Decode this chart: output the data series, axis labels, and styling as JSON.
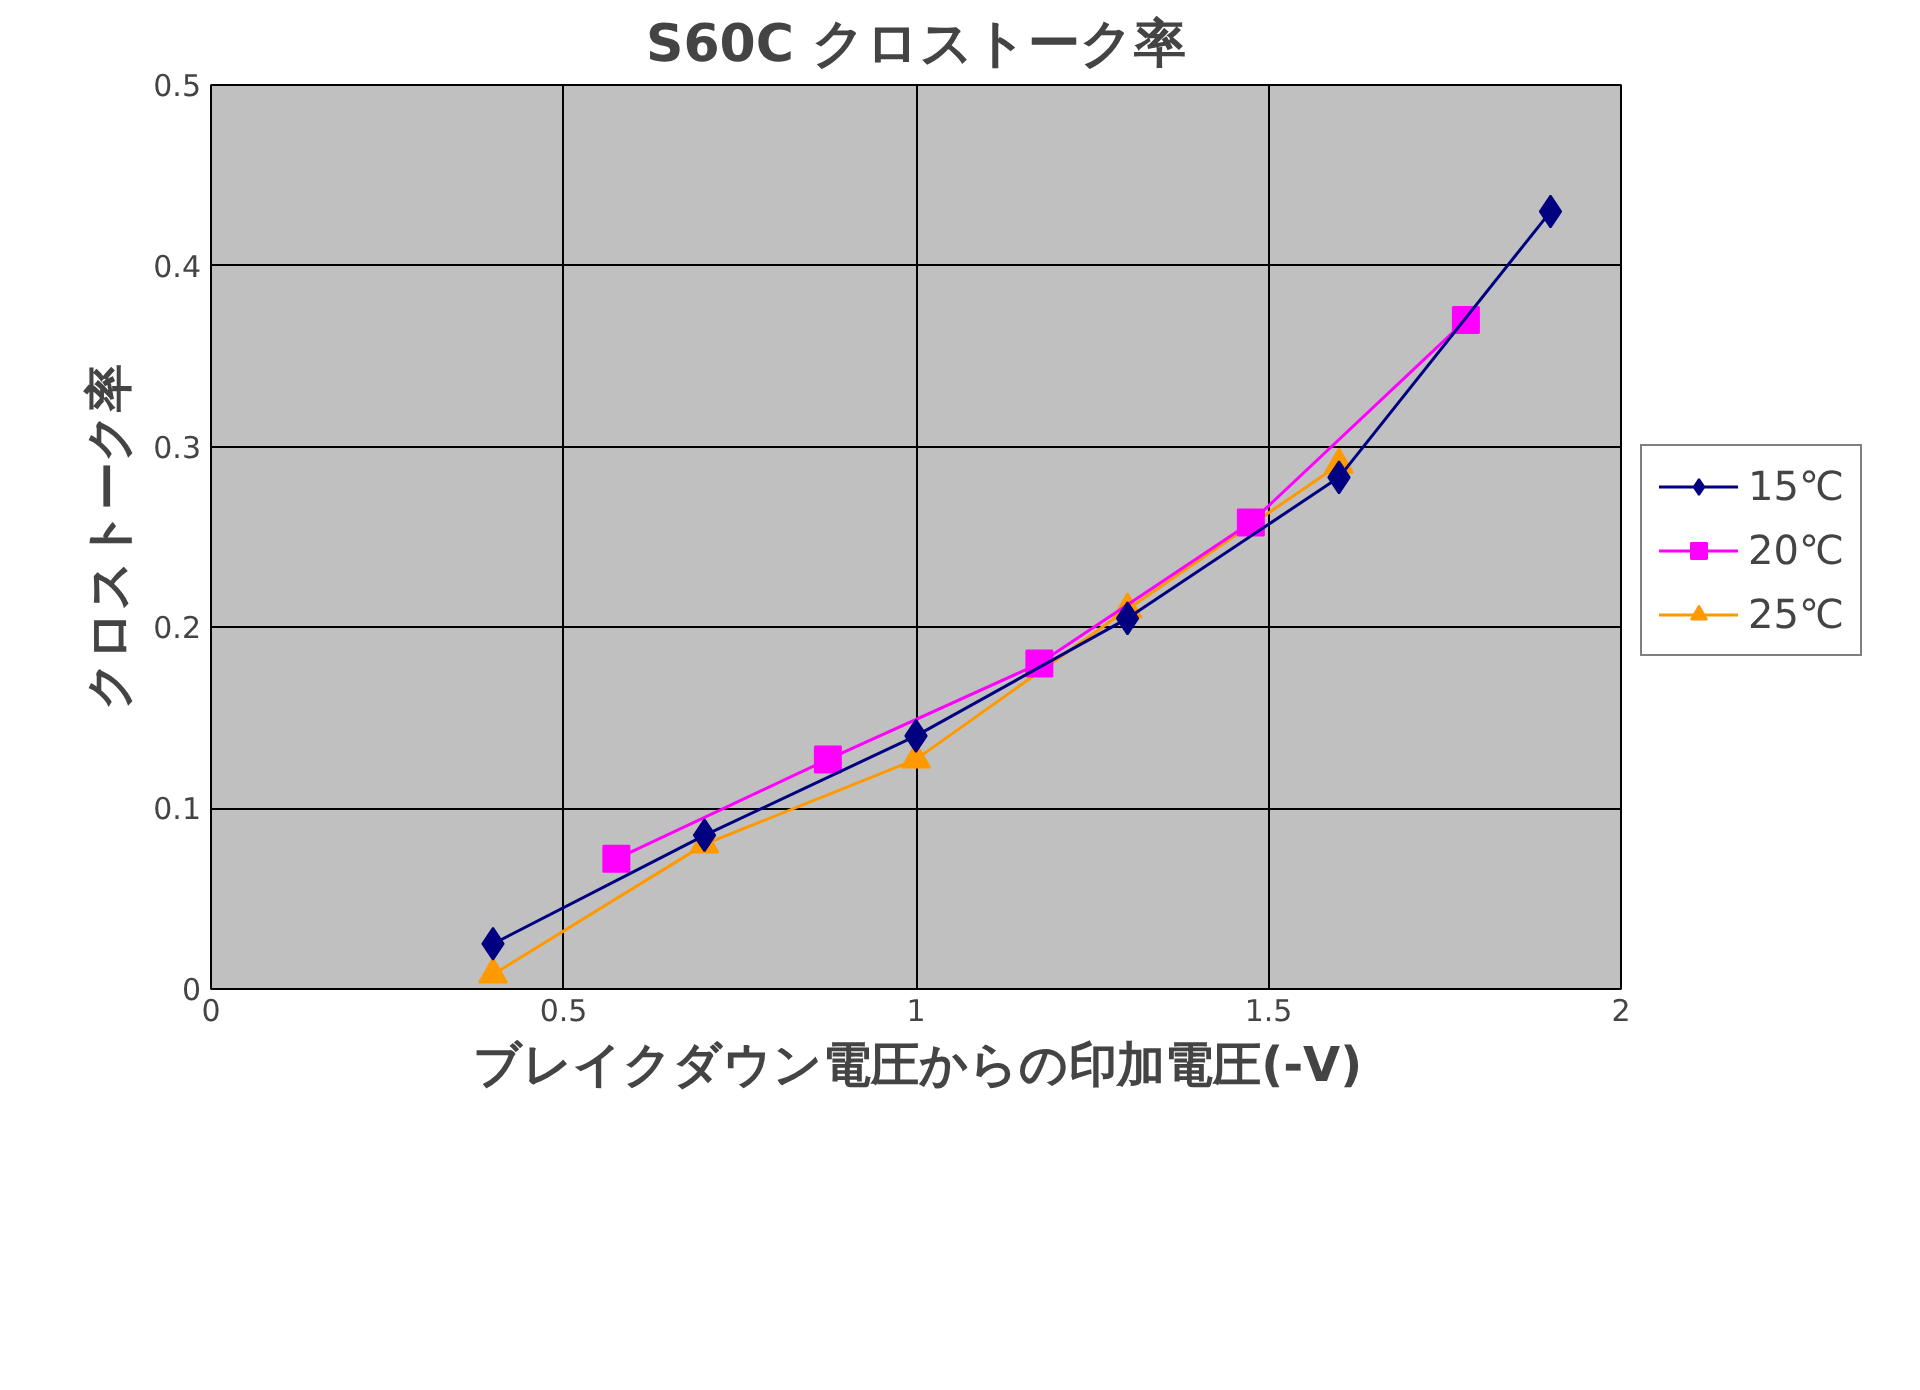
{
  "chart_data": {
    "type": "line",
    "title": "S60C クロストーク率",
    "xlabel": "ブレイクダウン電圧からの印加電圧(-V)",
    "ylabel": "クロストーク率",
    "xlim": [
      0,
      2
    ],
    "xticks": [
      0,
      0.5,
      1,
      1.5,
      2
    ],
    "ylim": [
      0,
      0.5
    ],
    "yticks": [
      0,
      0.1,
      0.2,
      0.3,
      0.4,
      0.5
    ],
    "grid": true,
    "legend": "right",
    "series": [
      {
        "name": "15℃",
        "color": "#000080",
        "marker": "diamond",
        "x": [
          0.4,
          0.7,
          1.0,
          1.3,
          1.6,
          1.9
        ],
        "values": [
          0.025,
          0.085,
          0.14,
          0.205,
          0.283,
          0.43
        ]
      },
      {
        "name": "20℃",
        "color": "#ff00ff",
        "marker": "square",
        "x": [
          0.575,
          0.875,
          1.175,
          1.475,
          1.78
        ],
        "values": [
          0.072,
          0.127,
          0.18,
          0.258,
          0.37
        ]
      },
      {
        "name": "25℃",
        "color": "#ff9900",
        "marker": "triangle",
        "x": [
          0.4,
          0.7,
          1.0,
          1.3,
          1.6
        ],
        "values": [
          0.008,
          0.08,
          0.127,
          0.21,
          0.29
        ]
      }
    ]
  }
}
